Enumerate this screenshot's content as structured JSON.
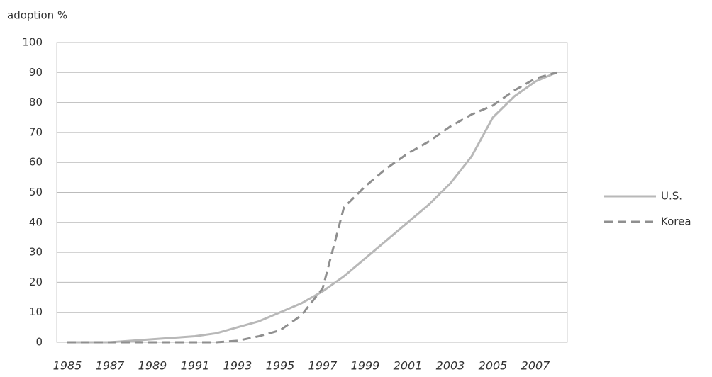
{
  "chart_data": {
    "type": "line",
    "y_label": "adoption %",
    "categories": [
      "1985",
      null,
      "1987",
      null,
      "1989",
      null,
      "1991",
      null,
      "1993",
      null,
      "1995",
      null,
      "1997",
      null,
      "1999",
      null,
      "2001",
      null,
      "2003",
      null,
      "2005",
      null,
      "2007",
      null
    ],
    "series": [
      {
        "name": "U.S.",
        "color": "#b8b8b8",
        "dash": false,
        "values": [
          0,
          0,
          0,
          0.5,
          1,
          1.5,
          2,
          3,
          5,
          7,
          10,
          13,
          17,
          22,
          28,
          34,
          40,
          46,
          53,
          62,
          75,
          82,
          87,
          90
        ]
      },
      {
        "name": "Korea",
        "color": "#8f8f8f",
        "dash": true,
        "values": [
          0,
          0,
          0,
          0,
          0,
          0,
          0,
          0,
          0.5,
          2,
          4,
          9,
          18,
          45,
          52,
          58,
          63,
          67,
          72,
          76,
          79,
          84,
          88,
          90
        ]
      }
    ],
    "ylim": [
      0,
      100
    ],
    "yticks": [
      0,
      10,
      20,
      30,
      40,
      50,
      60,
      70,
      80,
      90,
      100
    ],
    "grid": true,
    "legend": "right"
  }
}
